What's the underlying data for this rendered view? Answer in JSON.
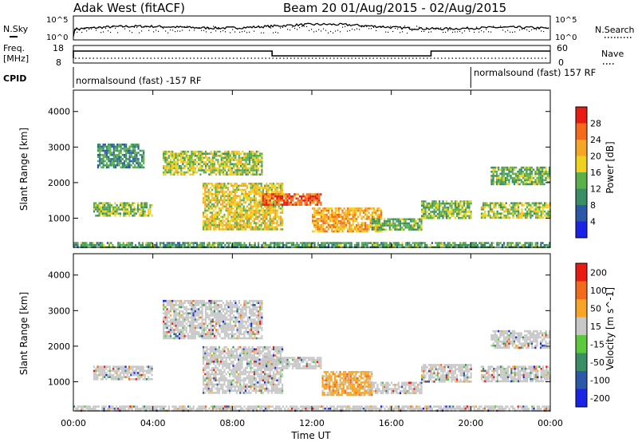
{
  "header": {
    "station": "Adak West (fitACF)",
    "beam_date": "Beam 20 01/Aug/2015 - 02/Aug/2015"
  },
  "top_panels": {
    "nsky_label": "N.Sky",
    "nsearch_label": "N.Search",
    "noise_ticks_left": [
      "10^5",
      "10^0"
    ],
    "noise_ticks_right": [
      "10^5",
      "10^0"
    ],
    "freq_label": "Freq.",
    "freq_unit": "[MHz]",
    "freq_ticks": [
      "18",
      "8"
    ],
    "nave_label": "Nave",
    "nave_ticks": [
      "60",
      "0"
    ],
    "cpid_label": "CPID",
    "cpid_left": "normalsound (fast) -157 RF",
    "cpid_right": "normalsound (fast) 157 RF",
    "freq_step_times_h": [
      0.0,
      10.0,
      18.0,
      24.0
    ],
    "cpid_change_time_h": 20.0
  },
  "chart_data": [
    {
      "type": "heatmap",
      "variable": "Power",
      "colorbar_label": "Power [dB]",
      "colorbar_ticks": [
        "28",
        "24",
        "20",
        "16",
        "12",
        "8",
        "4"
      ],
      "colorbar_colors": [
        "#1a24e6",
        "#2c58a8",
        "#3a8e66",
        "#5cb04a",
        "#f0d21e",
        "#f6a524",
        "#f26a1a",
        "#e81c12"
      ],
      "xlabel": "",
      "ylabel": "Slant Range [km]",
      "xlim": [
        0,
        24
      ],
      "ylim": [
        180,
        4600
      ],
      "yticks": [
        "1000",
        "2000",
        "3000",
        "4000"
      ],
      "regions": [
        {
          "t": [
            1.0,
            4.0
          ],
          "r": [
            1050,
            1450
          ],
          "level": 0.45
        },
        {
          "t": [
            1.2,
            3.5
          ],
          "r": [
            2450,
            3100
          ],
          "level": 0.3
        },
        {
          "t": [
            4.5,
            9.5
          ],
          "r": [
            2200,
            2900
          ],
          "level": 0.5
        },
        {
          "t": [
            6.5,
            10.5
          ],
          "r": [
            700,
            2000
          ],
          "level": 0.6
        },
        {
          "t": [
            9.5,
            12.5
          ],
          "r": [
            1350,
            1700
          ],
          "level": 0.9
        },
        {
          "t": [
            12.0,
            15.5
          ],
          "r": [
            650,
            1300
          ],
          "level": 0.7
        },
        {
          "t": [
            15.0,
            17.5
          ],
          "r": [
            700,
            1000
          ],
          "level": 0.4
        },
        {
          "t": [
            17.5,
            20.0
          ],
          "r": [
            1000,
            1500
          ],
          "level": 0.45
        },
        {
          "t": [
            20.5,
            24.0
          ],
          "r": [
            1000,
            1450
          ],
          "level": 0.5
        },
        {
          "t": [
            21.0,
            24.0
          ],
          "r": [
            1950,
            2450
          ],
          "level": 0.4
        },
        {
          "t": [
            0.0,
            24.0
          ],
          "r": [
            190,
            330
          ],
          "level": 0.35
        }
      ]
    },
    {
      "type": "heatmap",
      "variable": "Velocity",
      "colorbar_label": "Velocity [m s^-1]",
      "colorbar_ticks": [
        "200",
        "100",
        "50",
        "15",
        "-15",
        "-50",
        "-100",
        "-200"
      ],
      "colorbar_colors": [
        "#1a24e6",
        "#2c58a8",
        "#3a8e66",
        "#5cc83c",
        "#c8c8c8",
        "#f6a524",
        "#f26a1a",
        "#e81c12"
      ],
      "xlabel": "Time UT",
      "ylabel": "Slant Range [km]",
      "xlim": [
        0,
        24
      ],
      "ylim": [
        180,
        4600
      ],
      "xticks": [
        "00:00",
        "04:00",
        "08:00",
        "12:00",
        "16:00",
        "20:00",
        "00:00"
      ],
      "yticks": [
        "1000",
        "2000",
        "3000",
        "4000"
      ],
      "regions": [
        {
          "t": [
            1.0,
            4.0
          ],
          "r": [
            1050,
            1450
          ],
          "level": 0.5
        },
        {
          "t": [
            4.5,
            9.5
          ],
          "r": [
            2200,
            3300
          ],
          "level": 0.5
        },
        {
          "t": [
            6.5,
            10.5
          ],
          "r": [
            700,
            2000
          ],
          "level": 0.5
        },
        {
          "t": [
            9.5,
            12.5
          ],
          "r": [
            1350,
            1700
          ],
          "level": 0.45
        },
        {
          "t": [
            12.5,
            15.0
          ],
          "r": [
            650,
            1300
          ],
          "level": 0.72
        },
        {
          "t": [
            15.0,
            17.5
          ],
          "r": [
            700,
            1000
          ],
          "level": 0.5
        },
        {
          "t": [
            17.5,
            20.0
          ],
          "r": [
            1000,
            1500
          ],
          "level": 0.5
        },
        {
          "t": [
            20.5,
            24.0
          ],
          "r": [
            1000,
            1450
          ],
          "level": 0.5
        },
        {
          "t": [
            21.0,
            24.0
          ],
          "r": [
            1950,
            2450
          ],
          "level": 0.5
        },
        {
          "t": [
            0.0,
            24.0
          ],
          "r": [
            190,
            330
          ],
          "level": 0.45
        }
      ]
    }
  ]
}
